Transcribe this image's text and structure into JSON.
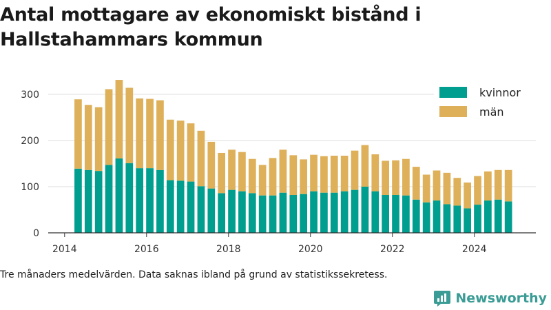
{
  "title": "Antal mottagare av ekonomiskt bistånd i Hallstahammars kommun",
  "note": "Tre månaders medelvärden. Data saknas ibland på grund av statistikssekretess.",
  "brand": {
    "name": "Newsworthy",
    "icon": "newsworthy-logo-icon"
  },
  "colors": {
    "kvinnor": "#009e8e",
    "man": "#deb05a",
    "grid": "#dddddd",
    "axis": "#333333"
  },
  "chart_data": {
    "type": "bar",
    "stacked": true,
    "title": "Antal mottagare av ekonomiskt bistånd i Hallstahammars kommun",
    "xlabel": "",
    "ylabel": "",
    "x_ticks": [
      "2014",
      "2016",
      "2018",
      "2020",
      "2022",
      "2024"
    ],
    "y_ticks": [
      0,
      100,
      200,
      300
    ],
    "xlim": [
      2013.6,
      2025.5
    ],
    "ylim": [
      0,
      340
    ],
    "grid": true,
    "legend": "top-right",
    "x": [
      2014.33,
      2014.58,
      2014.83,
      2015.08,
      2015.33,
      2015.58,
      2015.83,
      2016.08,
      2016.33,
      2016.58,
      2016.83,
      2017.08,
      2017.33,
      2017.58,
      2017.83,
      2018.08,
      2018.33,
      2018.58,
      2018.83,
      2019.08,
      2019.33,
      2019.58,
      2019.83,
      2020.08,
      2020.33,
      2020.58,
      2020.83,
      2021.08,
      2021.33,
      2021.58,
      2021.83,
      2022.08,
      2022.33,
      2022.58,
      2022.83,
      2023.08,
      2023.33,
      2023.58,
      2023.83,
      2024.08,
      2024.33,
      2024.58,
      2024.83
    ],
    "series": [
      {
        "name": "kvinnor",
        "values": [
          139,
          136,
          134,
          147,
          161,
          151,
          140,
          140,
          136,
          114,
          113,
          111,
          101,
          96,
          86,
          93,
          90,
          86,
          81,
          81,
          87,
          82,
          84,
          90,
          87,
          87,
          90,
          93,
          100,
          90,
          82,
          82,
          81,
          72,
          66,
          70,
          62,
          59,
          53,
          61,
          70,
          72,
          68
        ]
      },
      {
        "name": "män",
        "values": [
          150,
          141,
          138,
          164,
          170,
          163,
          151,
          150,
          151,
          131,
          130,
          126,
          120,
          101,
          87,
          87,
          85,
          74,
          66,
          81,
          93,
          86,
          75,
          79,
          79,
          80,
          77,
          85,
          90,
          80,
          74,
          75,
          79,
          71,
          60,
          65,
          68,
          60,
          56,
          62,
          63,
          64,
          68
        ]
      }
    ]
  }
}
